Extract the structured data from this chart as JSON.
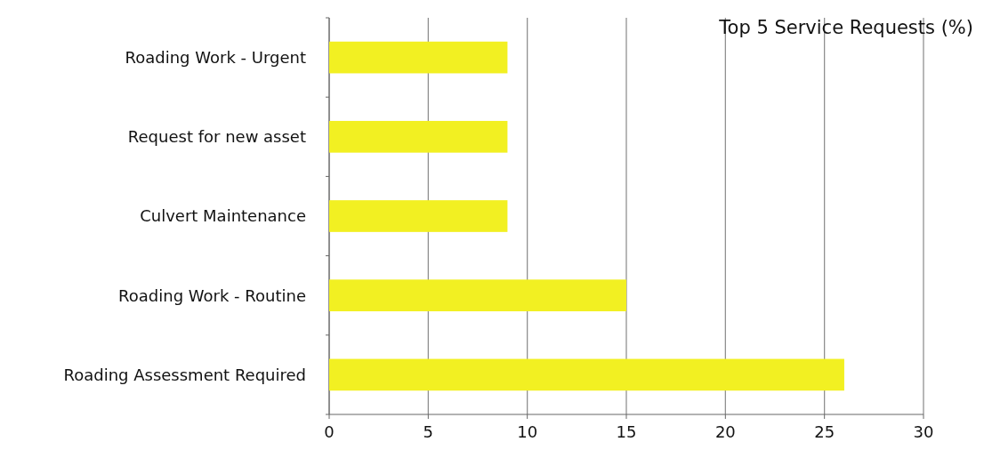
{
  "chart_data": {
    "type": "bar",
    "orientation": "horizontal",
    "title": "Top 5 Service Requests (%)",
    "categories": [
      "Roading Work - Urgent",
      "Request for new asset",
      "Culvert Maintenance",
      "Roading Work - Routine",
      "Roading Assessment Required"
    ],
    "values": [
      9,
      9,
      9,
      15,
      26
    ],
    "color": "#f2f022",
    "xlim": [
      0,
      30
    ],
    "xticks": [
      0,
      5,
      10,
      15,
      20,
      25,
      30
    ],
    "grid": "x"
  }
}
